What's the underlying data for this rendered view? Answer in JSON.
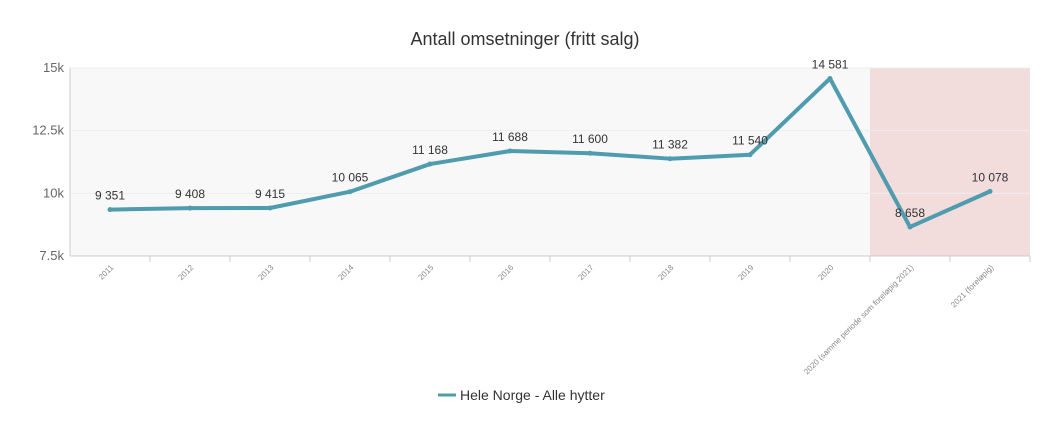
{
  "chart_data": {
    "type": "line",
    "title": "Antall omsetninger (fritt salg)",
    "categories": [
      "2011",
      "2012",
      "2013",
      "2014",
      "2015",
      "2016",
      "2017",
      "2018",
      "2019",
      "2020",
      "2020 (samme periode som foreløpig 2021)",
      "2021 (foreløpig)"
    ],
    "series": [
      {
        "name": "Hele Norge - Alle hytter",
        "values": [
          9351,
          9408,
          9415,
          10065,
          11168,
          11688,
          11600,
          11382,
          11540,
          14581,
          8658,
          10078
        ],
        "data_labels": [
          "9 351",
          "9 408",
          "9 415",
          "10 065",
          "11 168",
          "11 688",
          "11 600",
          "11 382",
          "11 540",
          "14 581",
          "8 658",
          "10 078"
        ]
      }
    ],
    "ylim": [
      7500,
      15000
    ],
    "yticks": [
      7500,
      10000,
      12500,
      15000
    ],
    "ytick_labels": [
      "7.5k",
      "10k",
      "12.5k",
      "15k"
    ],
    "plot_bands": [
      {
        "from_value": 0,
        "to_value": 10
      },
      {
        "from_value": 10,
        "to_value": 12
      }
    ],
    "legend_position": "bottom-center",
    "grid": true,
    "colors": {
      "line": "#4f9caf",
      "band_default": "#f8f8f8",
      "band_highlight": "#f2dcdc",
      "grid": "#eeeeee",
      "axis": "#cccccc"
    }
  }
}
